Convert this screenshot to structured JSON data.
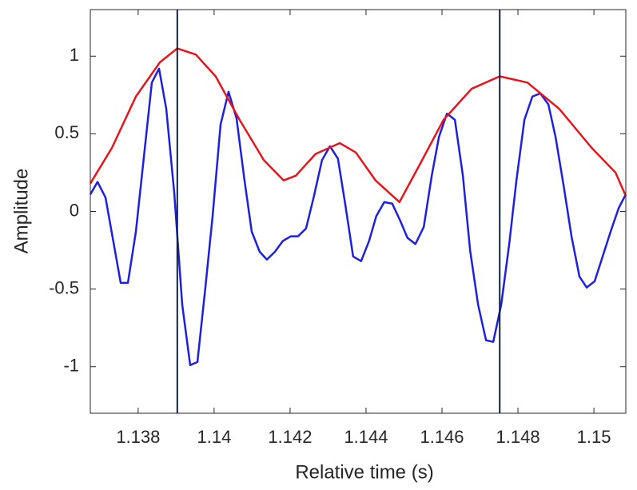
{
  "chart_data": {
    "type": "line",
    "xlabel": "Relative time (s)",
    "ylabel": "Amplitude",
    "xlim": [
      1.13674,
      1.15084
    ],
    "ylim": [
      -1.3,
      1.3
    ],
    "xticks": [
      1.138,
      1.14,
      1.142,
      1.144,
      1.146,
      1.148,
      1.15
    ],
    "yticks": [
      -1,
      -0.5,
      0,
      0.5,
      1
    ],
    "vlines": [
      1.13903,
      1.14752
    ],
    "vline_color": "#0d2240",
    "series": [
      {
        "color": "#1f1fe0",
        "x": [
          1.13674,
          1.13693,
          1.13714,
          1.13754,
          1.13773,
          1.13794,
          1.13836,
          1.13855,
          1.13874,
          1.13895,
          1.13916,
          1.13937,
          1.13956,
          1.13977,
          1.13996,
          1.14017,
          1.14038,
          1.14059,
          1.1408,
          1.14099,
          1.1412,
          1.14139,
          1.1416,
          1.14181,
          1.14202,
          1.14221,
          1.14242,
          1.14263,
          1.14284,
          1.14305,
          1.14326,
          1.14345,
          1.14366,
          1.14387,
          1.14408,
          1.14427,
          1.14448,
          1.14469,
          1.1449,
          1.14509,
          1.1453,
          1.14552,
          1.14573,
          1.14592,
          1.14613,
          1.14634,
          1.14655,
          1.14674,
          1.14695,
          1.14716,
          1.14735,
          1.14756,
          1.14777,
          1.14796,
          1.14817,
          1.14838,
          1.14859,
          1.1488,
          1.14899,
          1.1492,
          1.14941,
          1.14962,
          1.14981,
          1.15002,
          1.15023,
          1.15044,
          1.15065,
          1.15084
        ],
        "values": [
          0.11,
          0.19,
          0.09,
          -0.46,
          -0.46,
          -0.13,
          0.83,
          0.92,
          0.66,
          0.12,
          -0.6,
          -0.99,
          -0.97,
          -0.49,
          -0.03,
          0.56,
          0.77,
          0.6,
          0.2,
          -0.13,
          -0.26,
          -0.31,
          -0.26,
          -0.19,
          -0.16,
          -0.16,
          -0.11,
          0.1,
          0.33,
          0.42,
          0.34,
          0.05,
          -0.29,
          -0.32,
          -0.19,
          -0.03,
          0.06,
          0.05,
          -0.06,
          -0.17,
          -0.21,
          -0.1,
          0.23,
          0.48,
          0.63,
          0.59,
          0.23,
          -0.25,
          -0.6,
          -0.83,
          -0.84,
          -0.6,
          -0.21,
          0.2,
          0.59,
          0.74,
          0.76,
          0.69,
          0.48,
          0.17,
          -0.16,
          -0.42,
          -0.49,
          -0.45,
          -0.29,
          -0.13,
          0.02,
          0.11
        ]
      },
      {
        "color": "#e8141c",
        "x": [
          1.13674,
          1.13731,
          1.13794,
          1.13857,
          1.13903,
          1.13952,
          1.14004,
          1.14067,
          1.14131,
          1.14183,
          1.14215,
          1.14267,
          1.14331,
          1.14373,
          1.14425,
          1.14488,
          1.14541,
          1.14604,
          1.14678,
          1.14752,
          1.14825,
          1.14909,
          1.14994,
          1.15057,
          1.15084
        ],
        "values": [
          0.18,
          0.41,
          0.74,
          0.96,
          1.05,
          1.01,
          0.87,
          0.59,
          0.33,
          0.2,
          0.23,
          0.37,
          0.44,
          0.38,
          0.2,
          0.06,
          0.3,
          0.59,
          0.79,
          0.87,
          0.83,
          0.66,
          0.41,
          0.25,
          0.1
        ]
      }
    ]
  }
}
